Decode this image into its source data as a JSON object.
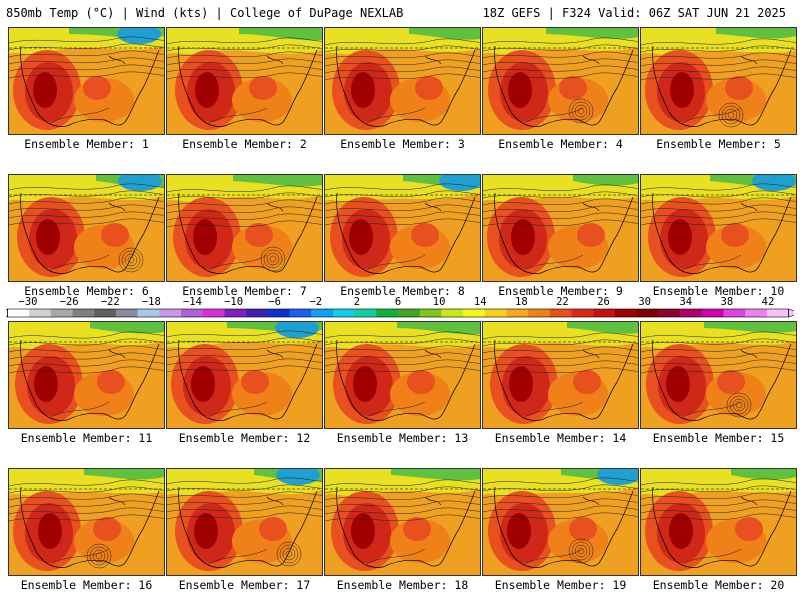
{
  "header": {
    "left": "850mb Temp (°C) | Wind (kts) | College of DuPage NEXLAB",
    "right": "18Z GEFS | F324 Valid: 06Z SAT JUN 21 2025"
  },
  "members": [
    {
      "label": "Ensemble Member: 1"
    },
    {
      "label": "Ensemble Member: 2"
    },
    {
      "label": "Ensemble Member: 3"
    },
    {
      "label": "Ensemble Member: 4"
    },
    {
      "label": "Ensemble Member: 5"
    },
    {
      "label": "Ensemble Member: 6"
    },
    {
      "label": "Ensemble Member: 7"
    },
    {
      "label": "Ensemble Member: 8"
    },
    {
      "label": "Ensemble Member: 9"
    },
    {
      "label": "Ensemble Member: 10"
    },
    {
      "label": "Ensemble Member: 11"
    },
    {
      "label": "Ensemble Member: 12"
    },
    {
      "label": "Ensemble Member: 13"
    },
    {
      "label": "Ensemble Member: 14"
    },
    {
      "label": "Ensemble Member: 15"
    },
    {
      "label": "Ensemble Member: 16"
    },
    {
      "label": "Ensemble Member: 17"
    },
    {
      "label": "Ensemble Member: 18"
    },
    {
      "label": "Ensemble Member: 19"
    },
    {
      "label": "Ensemble Member: 20"
    }
  ],
  "colorbar": {
    "ticks": [
      "−30",
      "−26",
      "−22",
      "−18",
      "−14",
      "−10",
      "−6",
      "−2",
      "2",
      "6",
      "10",
      "14",
      "18",
      "22",
      "26",
      "30",
      "34",
      "38",
      "42"
    ],
    "colors": [
      "#ffffff",
      "#d0d0d0",
      "#a8a8a8",
      "#808080",
      "#606060",
      "#8a8aa0",
      "#a8c8e8",
      "#c898e8",
      "#b060d8",
      "#d830d8",
      "#8020c0",
      "#4020b0",
      "#1030d0",
      "#1860f0",
      "#10a0f0",
      "#10d0e8",
      "#10d0a0",
      "#10b040",
      "#40a820",
      "#80c818",
      "#c8e818",
      "#f8f818",
      "#f8d018",
      "#f8a818",
      "#f08018",
      "#e85018",
      "#e02818",
      "#c81010",
      "#a00000",
      "#800000",
      "#900030",
      "#b00070",
      "#d000b0",
      "#e040e0",
      "#f080f0",
      "#f8c0f8"
    ]
  }
}
